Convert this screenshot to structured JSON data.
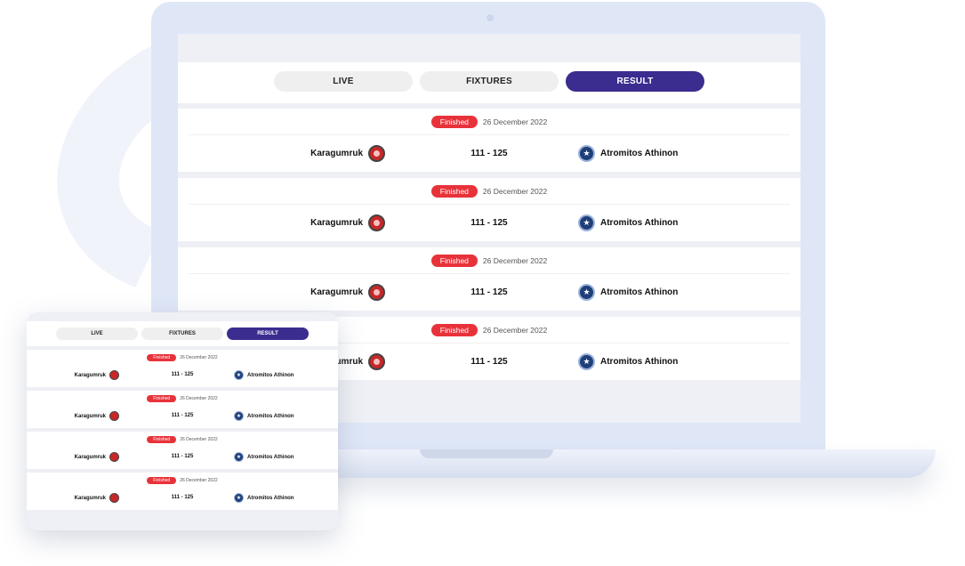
{
  "tabs": [
    {
      "label": "LIVE"
    },
    {
      "label": "FIXTURES"
    },
    {
      "label": "RESULT"
    }
  ],
  "active_tab": "RESULT",
  "colors": {
    "accent": "#3a2d8f",
    "finished": "#e8323a"
  },
  "icons": {
    "home_crest": "karagumruk-crest-icon",
    "away_crest": "star-crest-icon"
  },
  "matches": [
    {
      "status": "Finished",
      "date": "26 December 2022",
      "home": "Karagumruk",
      "score": "111 - 125",
      "away": "Atromitos Athinon"
    },
    {
      "status": "Finished",
      "date": "26 December 2022",
      "home": "Karagumruk",
      "score": "111 - 125",
      "away": "Atromitos Athinon"
    },
    {
      "status": "Finished",
      "date": "26 December 2022",
      "home": "Karagumruk",
      "score": "111 - 125",
      "away": "Atromitos Athinon"
    },
    {
      "status": "Finished",
      "date": "26 December 2022",
      "home": "Karagumruk",
      "score": "111 - 125",
      "away": "Atromitos Athinon"
    }
  ]
}
